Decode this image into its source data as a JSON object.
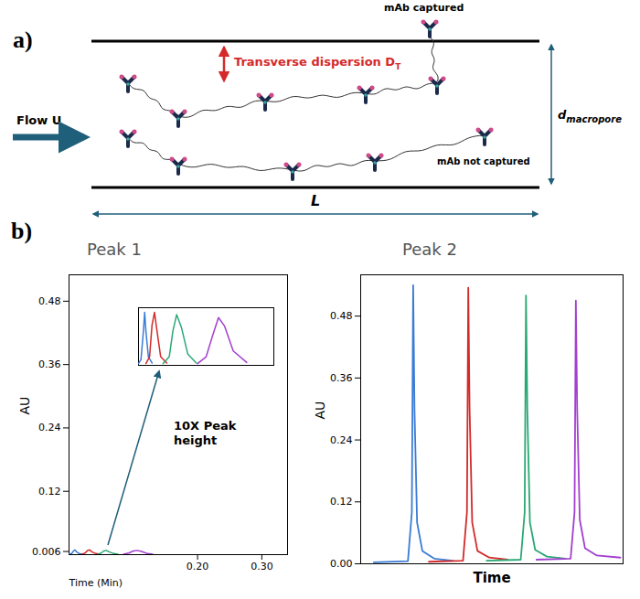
{
  "diagram": {
    "label": "a)",
    "flow": "Flow U",
    "dispersion": {
      "text": "Transverse dispersion D",
      "subscript": "T"
    },
    "width": {
      "text": "d",
      "subscript": "macropore"
    },
    "length": "L",
    "captured": "mAb captured",
    "not_captured": "mAb not captured"
  },
  "panel_b": {
    "label": "b)"
  },
  "chart_data": [
    {
      "type": "line",
      "title": "Peak 1",
      "x_label": "Time (Min)",
      "y_label": "AU",
      "xlim": [
        0,
        0.34
      ],
      "ylim": [
        0,
        0.53
      ],
      "xticks": [
        {
          "value": 0.2,
          "label": "0.20"
        },
        {
          "value": 0.3,
          "label": "0.30"
        }
      ],
      "yticks": [
        0.006,
        0.12,
        0.24,
        0.36,
        0.48
      ],
      "tick_labels": true,
      "series": [
        {
          "color": "#3a7bd5",
          "x": [
            0.0,
            0.004,
            0.007,
            0.009,
            0.012,
            0.016,
            0.02
          ],
          "values": [
            0.001,
            0.002,
            0.007,
            0.009,
            0.005,
            0.002,
            0.001
          ]
        },
        {
          "color": "#d42a2a",
          "x": [
            0.02,
            0.025,
            0.029,
            0.032,
            0.036,
            0.042,
            0.048
          ],
          "values": [
            0.001,
            0.003,
            0.008,
            0.009,
            0.005,
            0.002,
            0.001
          ]
        },
        {
          "color": "#2aa876",
          "x": [
            0.045,
            0.05,
            0.054,
            0.058,
            0.063,
            0.07,
            0.076
          ],
          "values": [
            0.001,
            0.003,
            0.007,
            0.008,
            0.005,
            0.002,
            0.001
          ]
        },
        {
          "color": "#a23fd0",
          "x": [
            0.085,
            0.093,
            0.1,
            0.106,
            0.113,
            0.122,
            0.13
          ],
          "values": [
            0.001,
            0.003,
            0.007,
            0.008,
            0.006,
            0.002,
            0.001
          ]
        }
      ],
      "annotation": "10X Peak height",
      "inset": {
        "type": "line",
        "xlim": [
          0,
          0.11
        ],
        "ylim": [
          0,
          0.01
        ],
        "tick_labels": false,
        "series": [
          {
            "color": "#3a7bd5",
            "x": [
              0.0,
              0.002,
              0.004,
              0.005,
              0.006,
              0.008,
              0.011
            ],
            "values": [
              0.0003,
              0.001,
              0.006,
              0.0092,
              0.006,
              0.0015,
              0.0004
            ]
          },
          {
            "color": "#d42a2a",
            "x": [
              0.006,
              0.009,
              0.011,
              0.013,
              0.015,
              0.018,
              0.023
            ],
            "values": [
              0.0003,
              0.0015,
              0.007,
              0.0092,
              0.006,
              0.0015,
              0.0004
            ]
          },
          {
            "color": "#2aa876",
            "x": [
              0.02,
              0.025,
              0.028,
              0.031,
              0.035,
              0.04,
              0.047
            ],
            "values": [
              0.0003,
              0.0015,
              0.006,
              0.0088,
              0.0065,
              0.002,
              0.0004
            ]
          },
          {
            "color": "#a23fd0",
            "x": [
              0.048,
              0.055,
              0.06,
              0.065,
              0.07,
              0.077,
              0.088
            ],
            "values": [
              0.0003,
              0.0015,
              0.005,
              0.0083,
              0.0068,
              0.0025,
              0.0005
            ]
          }
        ]
      }
    },
    {
      "type": "line",
      "title": "Peak 2",
      "x_label": "Time",
      "y_label": "AU",
      "xlim": [
        0,
        10
      ],
      "ylim": [
        0,
        0.56
      ],
      "yticks": [
        {
          "value": 0,
          "label": "0.00"
        },
        0.12,
        0.24,
        0.36,
        0.48
      ],
      "tick_labels": "y",
      "series": [
        {
          "color": "#3a7bd5",
          "x": [
            0.5,
            1.8,
            1.95,
            2.0,
            2.05,
            2.15,
            2.35,
            2.8,
            3.5
          ],
          "values": [
            0.003,
            0.005,
            0.1,
            0.54,
            0.3,
            0.08,
            0.025,
            0.01,
            0.006
          ]
        },
        {
          "color": "#d42a2a",
          "x": [
            2.6,
            3.9,
            4.05,
            4.1,
            4.15,
            4.25,
            4.45,
            4.9,
            5.6
          ],
          "values": [
            0.004,
            0.006,
            0.1,
            0.535,
            0.3,
            0.08,
            0.025,
            0.012,
            0.008
          ]
        },
        {
          "color": "#2aa876",
          "x": [
            4.8,
            6.1,
            6.25,
            6.3,
            6.35,
            6.45,
            6.65,
            7.1,
            7.8
          ],
          "values": [
            0.006,
            0.008,
            0.1,
            0.52,
            0.3,
            0.08,
            0.027,
            0.014,
            0.01
          ]
        },
        {
          "color": "#a23fd0",
          "x": [
            6.7,
            8.0,
            8.15,
            8.2,
            8.25,
            8.35,
            8.55,
            9.0,
            9.9
          ],
          "values": [
            0.008,
            0.01,
            0.1,
            0.51,
            0.3,
            0.085,
            0.03,
            0.016,
            0.012
          ]
        }
      ]
    }
  ]
}
